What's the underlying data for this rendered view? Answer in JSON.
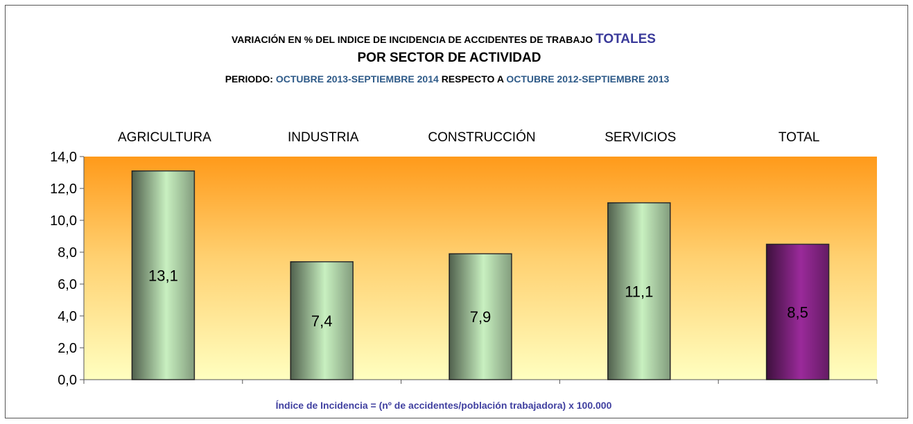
{
  "chart_data": {
    "type": "bar",
    "title": [
      "VARIACIÓN EN % DEL INDICE DE INCIDENCIA DE ACCIDENTES DE TRABAJO",
      "TOTALES"
    ],
    "subtitle": "POR SECTOR DE ACTIVIDAD",
    "period": [
      "PERIODO:",
      "OCTUBRE 2013-SEPTIEMBRE 2014",
      "RESPECTO A",
      "OCTUBRE 2012-SEPTIEMBRE 2013"
    ],
    "categories": [
      "AGRICULTURA",
      "INDUSTRIA",
      "CONSTRUCCIÓN",
      "SERVICIOS",
      "TOTAL"
    ],
    "values": [
      13.1,
      7.4,
      7.9,
      11.1,
      8.5
    ],
    "value_labels": [
      "13,1",
      "7,4",
      "7,9",
      "11,1",
      "8,5"
    ],
    "colors": [
      "#c8f0c0",
      "#c8f0c0",
      "#c8f0c0",
      "#c8f0c0",
      "#9a2a9a"
    ],
    "ylim": [
      0,
      14
    ],
    "yticks": [
      {
        "value": 0,
        "label": "0,0"
      },
      {
        "value": 2,
        "label": "2,0"
      },
      {
        "value": 4,
        "label": "4,0"
      },
      {
        "value": 6,
        "label": "6,0"
      },
      {
        "value": 8,
        "label": "8,0"
      },
      {
        "value": 10,
        "label": "10,0"
      },
      {
        "value": 12,
        "label": "12,0"
      },
      {
        "value": 14,
        "label": "14,0"
      }
    ],
    "note": "Índice de Incidencia = (nº de accidentes/población trabajadora) x 100.000"
  }
}
